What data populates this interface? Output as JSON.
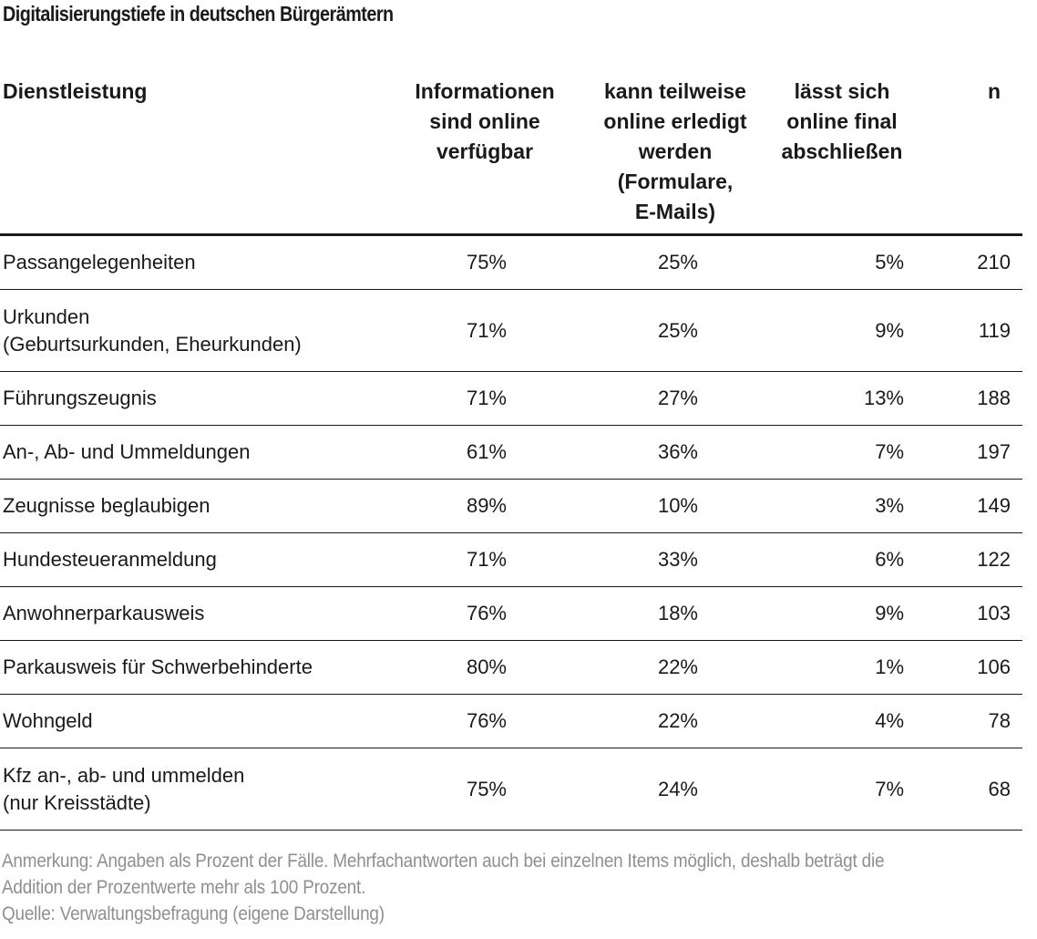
{
  "title": "Digitalisierungstiefe in deutschen Bürgerämtern",
  "table": {
    "headers": {
      "name": "Dienstleistung",
      "info": [
        "Informationen",
        "sind online",
        "verfügbar"
      ],
      "part": [
        "kann teilweise",
        "online erledigt",
        "werden",
        "(Formulare,",
        "E-Mails)"
      ],
      "final": [
        "lässt sich",
        "online final",
        "abschließen"
      ],
      "n": "n"
    },
    "rows": [
      {
        "name": [
          "Passangelegenheiten"
        ],
        "info": "75%",
        "part": "25%",
        "final": "5%",
        "n": "210"
      },
      {
        "name": [
          "Urkunden",
          "(Geburtsurkunden, Eheurkunden)"
        ],
        "info": "71%",
        "part": "25%",
        "final": "9%",
        "n": "119"
      },
      {
        "name": [
          "Führungszeugnis"
        ],
        "info": "71%",
        "part": "27%",
        "final": "13%",
        "n": "188"
      },
      {
        "name": [
          "An-, Ab- und Ummeldungen"
        ],
        "info": "61%",
        "part": "36%",
        "final": "7%",
        "n": "197"
      },
      {
        "name": [
          "Zeugnisse beglaubigen"
        ],
        "info": "89%",
        "part": "10%",
        "final": "3%",
        "n": "149"
      },
      {
        "name": [
          "Hundesteueranmeldung"
        ],
        "info": "71%",
        "part": "33%",
        "final": "6%",
        "n": "122"
      },
      {
        "name": [
          "Anwohnerparkausweis"
        ],
        "info": "76%",
        "part": "18%",
        "final": "9%",
        "n": "103"
      },
      {
        "name": [
          "Parkausweis für Schwerbehinderte"
        ],
        "info": "80%",
        "part": "22%",
        "final": "1%",
        "n": "106"
      },
      {
        "name": [
          "Wohngeld"
        ],
        "info": "76%",
        "part": "22%",
        "final": "4%",
        "n": "78"
      },
      {
        "name": [
          "Kfz an-, ab- und ummelden",
          "(nur Kreisstädte)"
        ],
        "info": "75%",
        "part": "24%",
        "final": "7%",
        "n": "68"
      }
    ]
  },
  "notes": {
    "remark_line1": "Anmerkung: Angaben als Prozent der Fälle. Mehrfachantworten auch bei einzelnen Items möglich, deshalb beträgt die",
    "remark_line2": "Addition der Prozentwerte mehr als 100 Prozent.",
    "source": "Quelle: Verwaltungsbefragung (eigene Darstellung)"
  }
}
